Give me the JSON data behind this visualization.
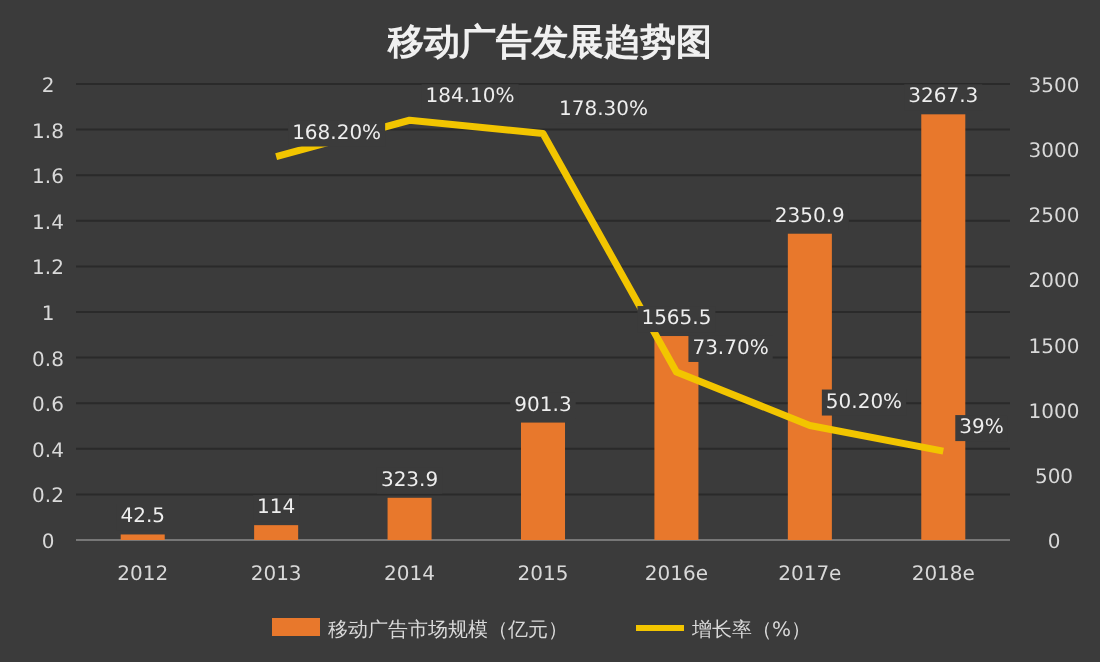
{
  "chart_data": {
    "type": "bar",
    "title": "移动广告发展趋势图",
    "categories": [
      "2012",
      "2013",
      "2014",
      "2015",
      "2016e",
      "2017e",
      "2018e"
    ],
    "series": [
      {
        "name": "移动广告市场规模（亿元）",
        "axis": "y2",
        "color": "#e8782c",
        "values": [
          42.5,
          114,
          323.9,
          901.3,
          1565.5,
          2350.9,
          3267.3
        ],
        "value_labels": [
          "42.5",
          "114",
          "323.9",
          "901.3",
          "1565.5",
          "2350.9",
          "3267.3"
        ]
      },
      {
        "name": "增长率（%）",
        "type": "line",
        "color": "#f2c500",
        "values": [
          null,
          1.682,
          1.841,
          1.783,
          0.737,
          0.502,
          0.39
        ],
        "value_labels": [
          null,
          "168.20%",
          "184.10%",
          "178.30%",
          "73.70%",
          "50.20%",
          "39%"
        ]
      }
    ],
    "ylim": [
      0,
      2
    ],
    "yticks": [
      0,
      0.2,
      0.4,
      0.6,
      0.8,
      1,
      1.2,
      1.4,
      1.6,
      1.8,
      2
    ],
    "y2lim": [
      0,
      3500
    ],
    "y2ticks": [
      0,
      500,
      1000,
      1500,
      2000,
      2500,
      3000,
      3500
    ],
    "grid": "y",
    "legend": "bottom",
    "marker": "none"
  }
}
